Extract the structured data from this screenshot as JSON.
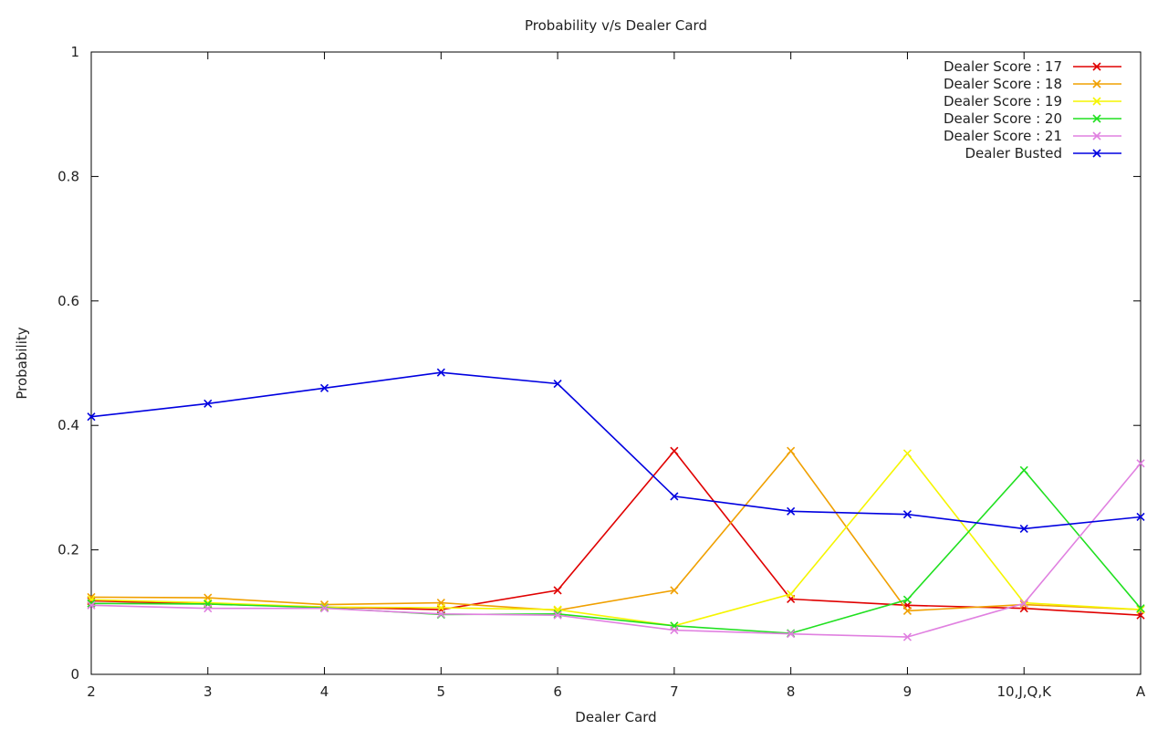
{
  "chart_data": {
    "type": "line",
    "title": "Probability v/s Dealer Card",
    "xlabel": "Dealer Card",
    "ylabel": "Probability",
    "categories": [
      "2",
      "3",
      "4",
      "5",
      "6",
      "7",
      "8",
      "9",
      "10,J,Q,K",
      "A"
    ],
    "ylim": [
      0,
      1
    ],
    "yticks": [
      "0",
      "0.2",
      "0.4",
      "0.6",
      "0.8",
      "1"
    ],
    "grid": false,
    "legend_position": "top-right",
    "series": [
      {
        "name": "Dealer Score : 17",
        "color": "#e00000",
        "values": [
          0.118,
          0.113,
          0.108,
          0.104,
          0.135,
          0.359,
          0.121,
          0.111,
          0.106,
          0.095
        ]
      },
      {
        "name": "Dealer Score : 18",
        "color": "#f0a000",
        "values": [
          0.124,
          0.123,
          0.112,
          0.115,
          0.103,
          0.135,
          0.359,
          0.102,
          0.112,
          0.104
        ]
      },
      {
        "name": "Dealer Score : 19",
        "color": "#f5f500",
        "values": [
          0.12,
          0.115,
          0.108,
          0.107,
          0.104,
          0.078,
          0.129,
          0.355,
          0.115,
          0.104
        ]
      },
      {
        "name": "Dealer Score : 20",
        "color": "#20e020",
        "values": [
          0.114,
          0.113,
          0.107,
          0.096,
          0.097,
          0.078,
          0.066,
          0.12,
          0.328,
          0.106
        ]
      },
      {
        "name": "Dealer Score : 21",
        "color": "#e080e0",
        "values": [
          0.111,
          0.106,
          0.106,
          0.097,
          0.095,
          0.071,
          0.065,
          0.06,
          0.114,
          0.339
        ]
      },
      {
        "name": "Dealer Busted",
        "color": "#0000e0",
        "values": [
          0.414,
          0.435,
          0.46,
          0.485,
          0.467,
          0.286,
          0.262,
          0.257,
          0.234,
          0.253
        ]
      }
    ]
  }
}
